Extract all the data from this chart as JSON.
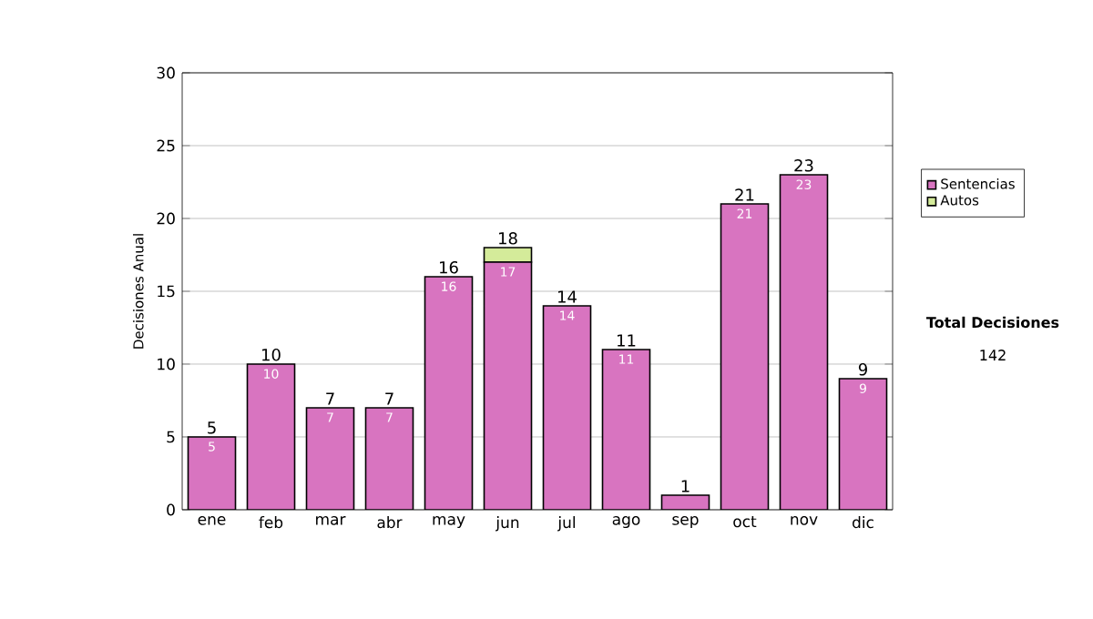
{
  "chart_data": {
    "type": "bar",
    "stacked": true,
    "ylabel": "Decisiones Anual",
    "categories": [
      "ene",
      "feb",
      "mar",
      "abr",
      "may",
      "jun",
      "jul",
      "ago",
      "sep",
      "oct",
      "nov",
      "dic"
    ],
    "series": [
      {
        "name": "Sentencias",
        "color": "#d874c0",
        "values": [
          5,
          10,
          7,
          7,
          16,
          17,
          14,
          11,
          1,
          21,
          23,
          9
        ],
        "value_labels": [
          "5",
          "10",
          "7",
          "7",
          "16",
          "17",
          "14",
          "11",
          null,
          "21",
          "23",
          "9"
        ]
      },
      {
        "name": "Autos",
        "color": "#d4eb9a",
        "values": [
          0,
          0,
          0,
          0,
          0,
          1,
          0,
          0,
          0,
          0,
          0,
          0
        ]
      }
    ],
    "totals": [
      "5",
      "10",
      "7",
      "7",
      "16",
      "18",
      "14",
      "11",
      "1",
      "21",
      "23",
      "9"
    ],
    "ylim": [
      0,
      30
    ],
    "yticks": [
      0,
      5,
      10,
      15,
      20,
      25,
      30
    ],
    "grid": "y",
    "legend": "right",
    "annotations": [
      "**Total Decisiones**",
      "142"
    ]
  }
}
